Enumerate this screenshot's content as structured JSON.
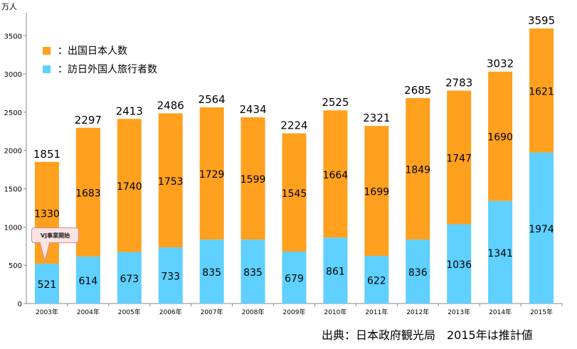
{
  "unit_label": "万人",
  "source_note": "出典：日本政府観光局　2015年は推計値",
  "callout_label": "VJ事業開始",
  "colors": {
    "outbound": "#ffa01e",
    "inbound": "#5fd0ff"
  },
  "legend": [
    {
      "label": "：出国日本人数",
      "series": "outbound"
    },
    {
      "label": "：訪日外国人旅行者数",
      "series": "inbound"
    }
  ],
  "chart_data": {
    "type": "bar",
    "stacked": true,
    "categories": [
      "2003年",
      "2004年",
      "2005年",
      "2006年",
      "2007年",
      "2008年",
      "2009年",
      "2010年",
      "2011年",
      "2012年",
      "2013年",
      "2014年",
      "2015年"
    ],
    "series": [
      {
        "name": "：訪日外国人旅行者数",
        "color": "#5fd0ff",
        "values": [
          521,
          614,
          673,
          733,
          835,
          835,
          679,
          861,
          622,
          836,
          1036,
          1341,
          1974
        ]
      },
      {
        "name": "：出国日本人数",
        "color": "#ffa01e",
        "values": [
          1330,
          1683,
          1740,
          1753,
          1729,
          1599,
          1545,
          1664,
          1699,
          1849,
          1747,
          1690,
          1621
        ]
      }
    ],
    "totals": [
      1851,
      2297,
      2413,
      2486,
      2564,
      2434,
      2224,
      2525,
      2321,
      2685,
      2783,
      3032,
      3595
    ],
    "y_ticks": [
      0,
      500,
      1000,
      1500,
      2000,
      2500,
      3000,
      3500
    ],
    "ylim": [
      0,
      3800
    ],
    "ylabel": "万人",
    "grid": false,
    "legend_position": "top-left"
  }
}
